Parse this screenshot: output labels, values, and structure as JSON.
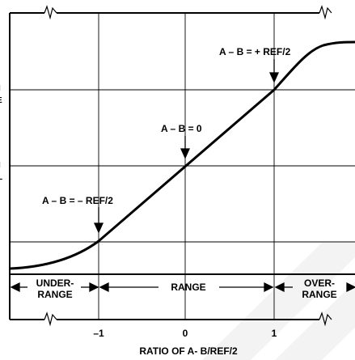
{
  "diagram": {
    "annotations": {
      "plus": "A – B = + REF/2",
      "zero": "A – B = 0",
      "minus": "A – B = – REF/2"
    },
    "regions": {
      "under_line1": "UNDER-",
      "under_line2": "RANGE",
      "range": "RANGE",
      "over_line1": "OVER-",
      "over_line2": "RANGE"
    },
    "x_ticks": [
      "–1",
      "0",
      "1"
    ],
    "x_title": "RATIO OF A- B/REF/2",
    "left_clipped_chars": [
      "I",
      "E",
      "I",
      "",
      "L"
    ]
  },
  "colors": {
    "ink": "#000000",
    "paper": "#ffffff",
    "watermark": "#f2f2f2"
  }
}
